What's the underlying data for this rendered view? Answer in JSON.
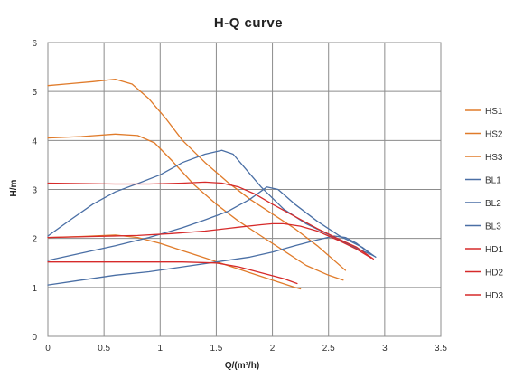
{
  "chart_data": {
    "type": "line",
    "title": "H-Q  curve",
    "xlabel": "Q/(m³/h)",
    "ylabel": "H/m",
    "xlim": [
      0,
      3.5
    ],
    "ylim": [
      0,
      6
    ],
    "x_ticks": [
      0,
      0.5,
      1,
      1.5,
      2,
      2.5,
      3,
      3.5
    ],
    "y_ticks": [
      0,
      1,
      2,
      3,
      4,
      5,
      6
    ],
    "grid": true,
    "legend_position": "right",
    "series": [
      {
        "name": "HS1",
        "color": "#E07B2A",
        "points": [
          [
            0,
            5.12
          ],
          [
            0.2,
            5.16
          ],
          [
            0.4,
            5.2
          ],
          [
            0.6,
            5.25
          ],
          [
            0.75,
            5.15
          ],
          [
            0.9,
            4.85
          ],
          [
            1.05,
            4.45
          ],
          [
            1.2,
            4.0
          ],
          [
            1.4,
            3.55
          ],
          [
            1.6,
            3.15
          ],
          [
            1.8,
            2.8
          ],
          [
            2.0,
            2.5
          ],
          [
            2.2,
            2.2
          ],
          [
            2.4,
            1.85
          ],
          [
            2.65,
            1.35
          ]
        ]
      },
      {
        "name": "HS2",
        "color": "#E07B2A",
        "points": [
          [
            0,
            4.05
          ],
          [
            0.3,
            4.08
          ],
          [
            0.6,
            4.13
          ],
          [
            0.8,
            4.1
          ],
          [
            0.95,
            3.95
          ],
          [
            1.1,
            3.6
          ],
          [
            1.3,
            3.1
          ],
          [
            1.5,
            2.7
          ],
          [
            1.7,
            2.35
          ],
          [
            1.9,
            2.05
          ],
          [
            2.1,
            1.75
          ],
          [
            2.3,
            1.45
          ],
          [
            2.5,
            1.25
          ],
          [
            2.63,
            1.15
          ]
        ]
      },
      {
        "name": "HS3",
        "color": "#E07B2A",
        "points": [
          [
            0,
            2.02
          ],
          [
            0.3,
            2.04
          ],
          [
            0.6,
            2.07
          ],
          [
            0.8,
            2.02
          ],
          [
            1.0,
            1.9
          ],
          [
            1.2,
            1.75
          ],
          [
            1.4,
            1.6
          ],
          [
            1.6,
            1.45
          ],
          [
            1.8,
            1.3
          ],
          [
            2.0,
            1.15
          ],
          [
            2.2,
            1.0
          ],
          [
            2.25,
            0.97
          ]
        ]
      },
      {
        "name": "BL1",
        "color": "#4A6FA5",
        "points": [
          [
            0,
            2.05
          ],
          [
            0.2,
            2.38
          ],
          [
            0.4,
            2.7
          ],
          [
            0.6,
            2.95
          ],
          [
            0.8,
            3.12
          ],
          [
            1.0,
            3.3
          ],
          [
            1.2,
            3.55
          ],
          [
            1.4,
            3.72
          ],
          [
            1.55,
            3.8
          ],
          [
            1.65,
            3.72
          ],
          [
            1.75,
            3.45
          ],
          [
            1.9,
            3.05
          ],
          [
            2.1,
            2.6
          ],
          [
            2.3,
            2.3
          ],
          [
            2.5,
            2.08
          ],
          [
            2.7,
            1.85
          ],
          [
            2.9,
            1.65
          ]
        ]
      },
      {
        "name": "BL2",
        "color": "#4A6FA5",
        "points": [
          [
            0,
            1.55
          ],
          [
            0.3,
            1.7
          ],
          [
            0.6,
            1.85
          ],
          [
            0.9,
            2.02
          ],
          [
            1.2,
            2.22
          ],
          [
            1.4,
            2.38
          ],
          [
            1.6,
            2.55
          ],
          [
            1.8,
            2.8
          ],
          [
            1.95,
            3.05
          ],
          [
            2.05,
            3.0
          ],
          [
            2.2,
            2.7
          ],
          [
            2.4,
            2.35
          ],
          [
            2.6,
            2.05
          ],
          [
            2.8,
            1.82
          ],
          [
            2.9,
            1.65
          ]
        ]
      },
      {
        "name": "BL3",
        "color": "#4A6FA5",
        "points": [
          [
            0,
            1.05
          ],
          [
            0.3,
            1.15
          ],
          [
            0.6,
            1.25
          ],
          [
            0.9,
            1.32
          ],
          [
            1.2,
            1.42
          ],
          [
            1.5,
            1.52
          ],
          [
            1.8,
            1.62
          ],
          [
            2.0,
            1.72
          ],
          [
            2.2,
            1.85
          ],
          [
            2.4,
            1.97
          ],
          [
            2.55,
            2.05
          ],
          [
            2.65,
            2.02
          ],
          [
            2.75,
            1.9
          ],
          [
            2.85,
            1.72
          ],
          [
            2.92,
            1.62
          ]
        ]
      },
      {
        "name": "HD1",
        "color": "#D62A2A",
        "points": [
          [
            0,
            3.13
          ],
          [
            0.3,
            3.12
          ],
          [
            0.6,
            3.11
          ],
          [
            0.9,
            3.11
          ],
          [
            1.2,
            3.13
          ],
          [
            1.4,
            3.15
          ],
          [
            1.55,
            3.13
          ],
          [
            1.7,
            3.05
          ],
          [
            1.85,
            2.9
          ],
          [
            2.0,
            2.7
          ],
          [
            2.2,
            2.45
          ],
          [
            2.4,
            2.2
          ],
          [
            2.6,
            1.98
          ],
          [
            2.75,
            1.82
          ],
          [
            2.9,
            1.58
          ]
        ]
      },
      {
        "name": "HD2",
        "color": "#D62A2A",
        "points": [
          [
            0,
            2.02
          ],
          [
            0.4,
            2.04
          ],
          [
            0.8,
            2.06
          ],
          [
            1.1,
            2.1
          ],
          [
            1.4,
            2.15
          ],
          [
            1.7,
            2.23
          ],
          [
            1.9,
            2.28
          ],
          [
            2.0,
            2.3
          ],
          [
            2.1,
            2.3
          ],
          [
            2.25,
            2.25
          ],
          [
            2.4,
            2.15
          ],
          [
            2.6,
            1.95
          ],
          [
            2.75,
            1.78
          ],
          [
            2.88,
            1.6
          ]
        ]
      },
      {
        "name": "HD3",
        "color": "#D62A2A",
        "points": [
          [
            0,
            1.52
          ],
          [
            0.4,
            1.52
          ],
          [
            0.8,
            1.52
          ],
          [
            1.2,
            1.52
          ],
          [
            1.5,
            1.5
          ],
          [
            1.7,
            1.42
          ],
          [
            1.9,
            1.3
          ],
          [
            2.1,
            1.18
          ],
          [
            2.22,
            1.08
          ]
        ]
      }
    ]
  }
}
